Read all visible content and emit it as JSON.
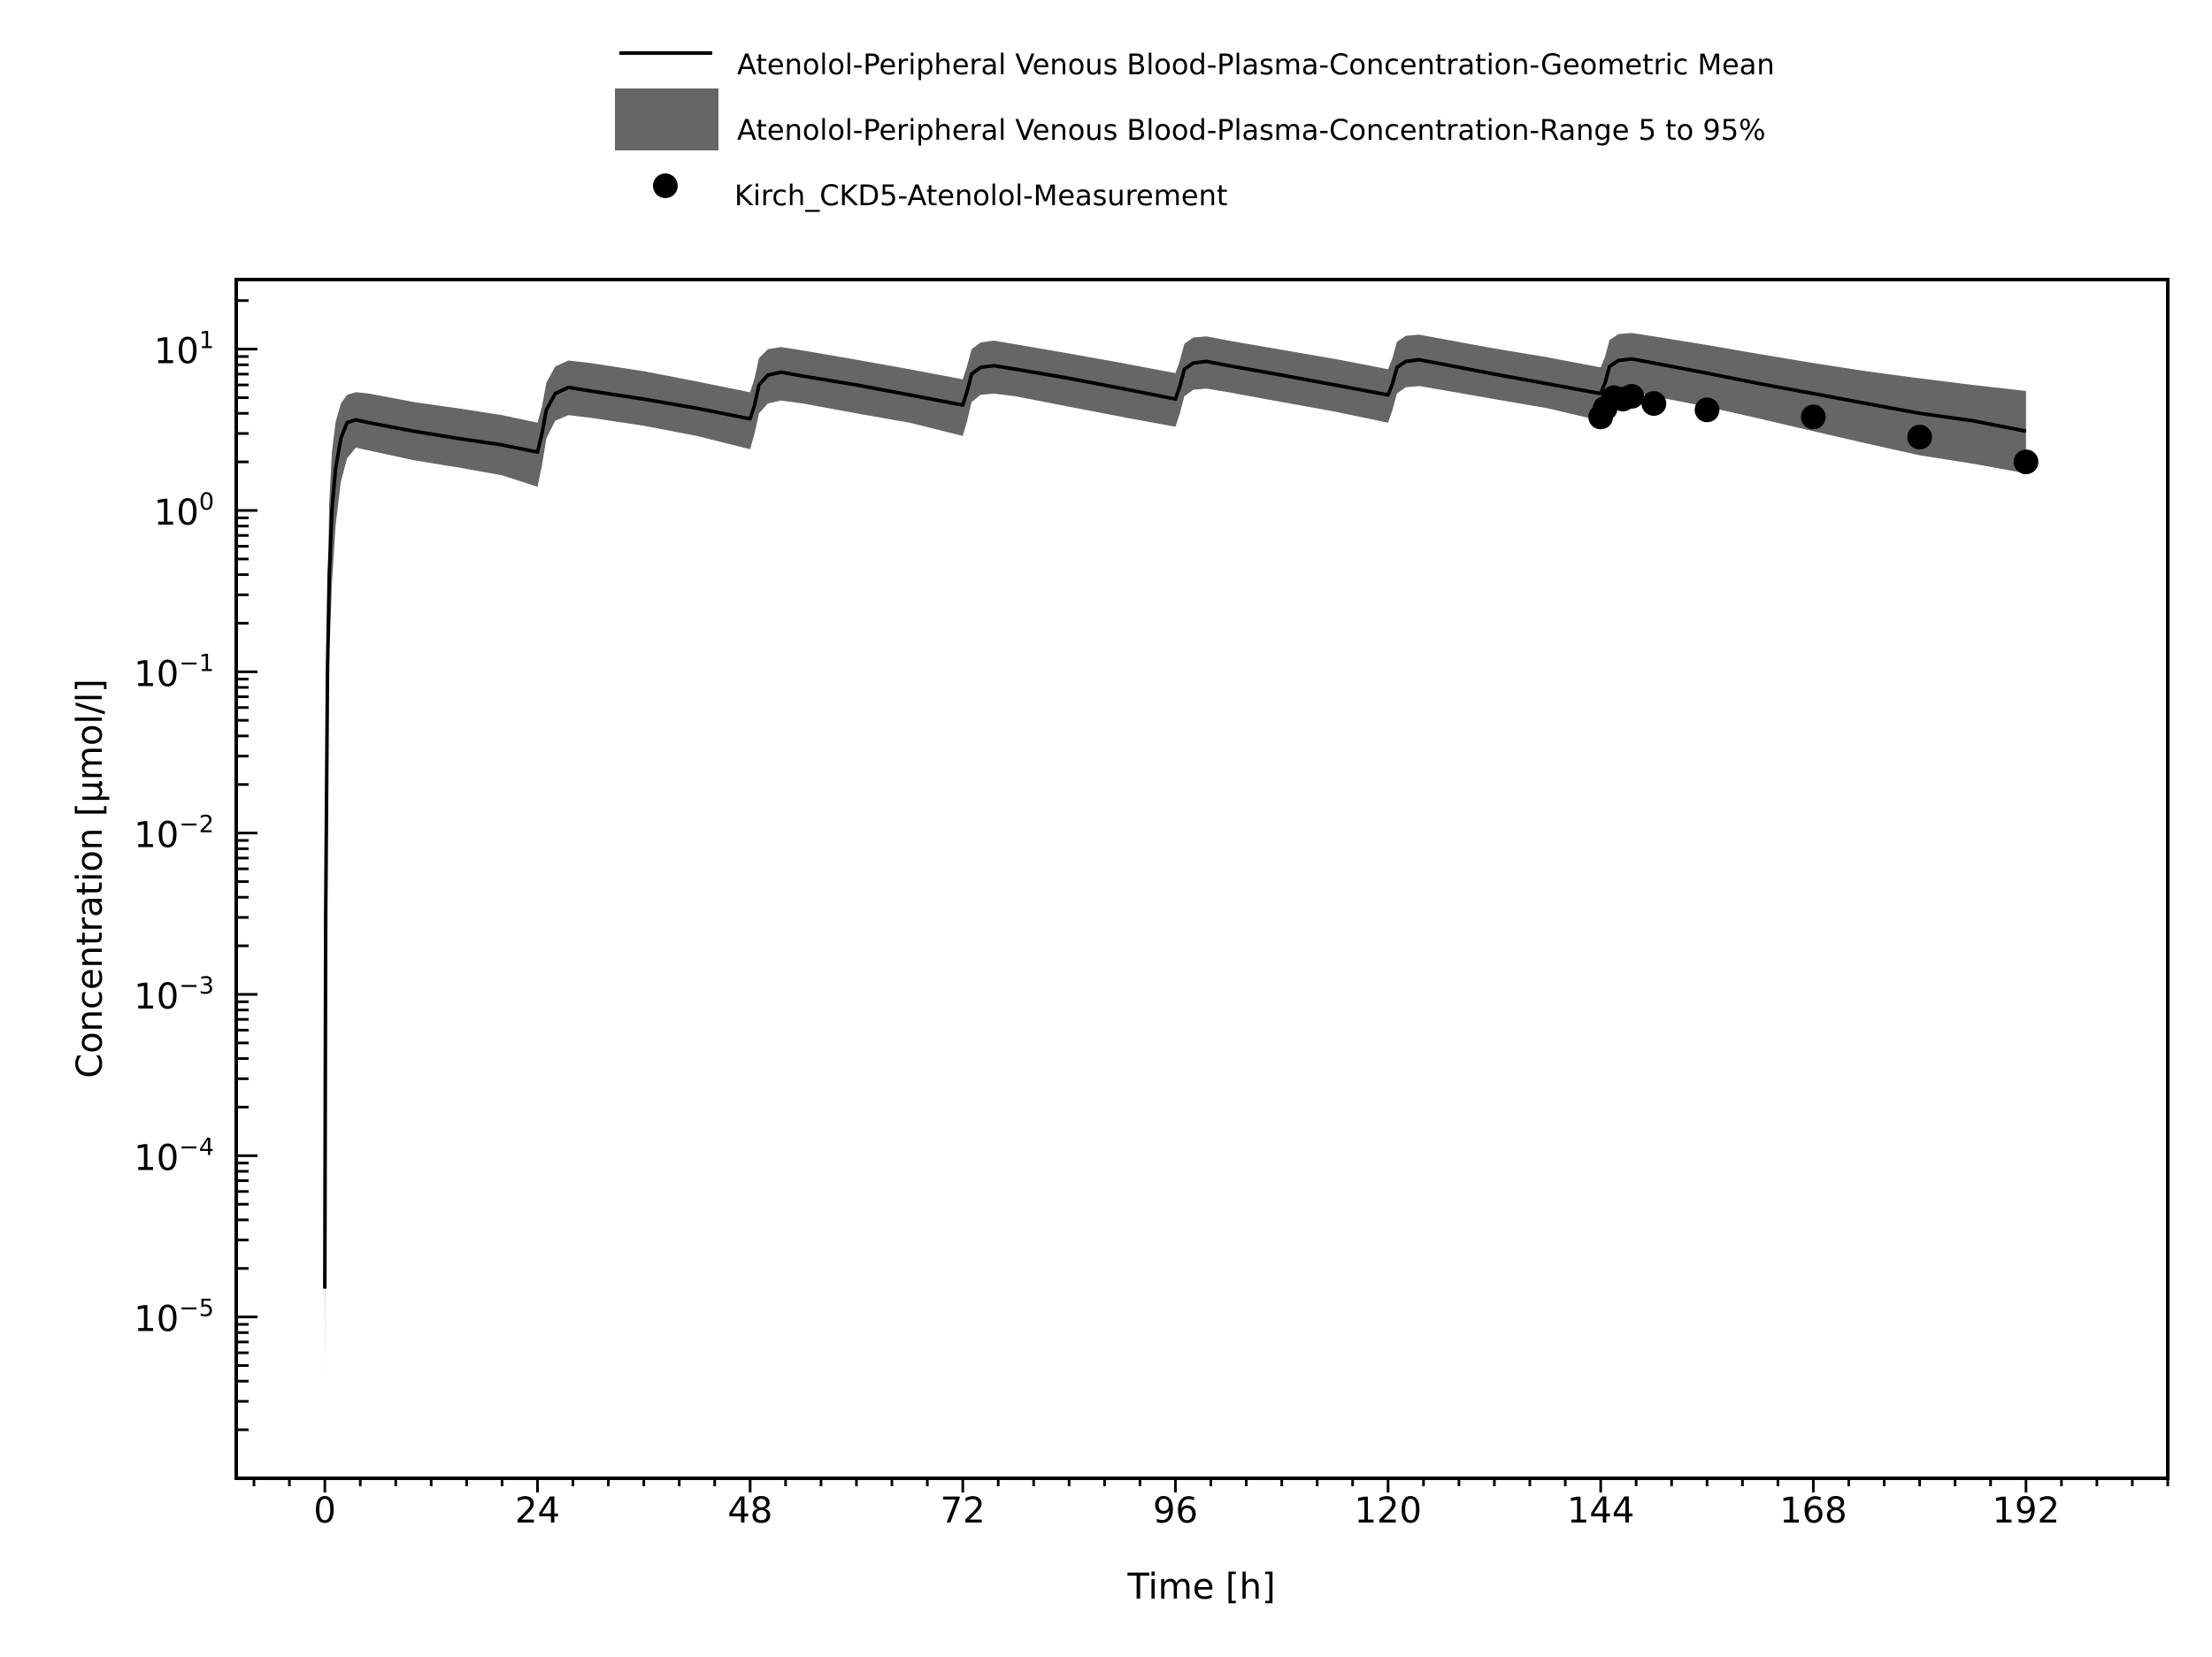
{
  "chart_data": {
    "type": "line",
    "title": "",
    "xlabel": "Time [h]",
    "ylabel": "Concentration [µmol/l]",
    "xlim": [
      -10,
      208
    ],
    "xticks": [
      0,
      24,
      48,
      72,
      96,
      120,
      144,
      168,
      192
    ],
    "ylog": true,
    "ylim": [
      1e-06,
      27
    ],
    "yticks": [
      {
        "base": "10",
        "exp": "−5",
        "value": 1e-05
      },
      {
        "base": "10",
        "exp": "−4",
        "value": 0.0001
      },
      {
        "base": "10",
        "exp": "−3",
        "value": 0.001
      },
      {
        "base": "10",
        "exp": "−2",
        "value": 0.01
      },
      {
        "base": "10",
        "exp": "−1",
        "value": 0.1
      },
      {
        "base": "10",
        "exp": "0",
        "value": 1
      },
      {
        "base": "10",
        "exp": "1",
        "value": 10
      }
    ],
    "grid": false,
    "legend_position": "top-center",
    "series": [
      {
        "name": "Atenolol-Peripheral Venous Blood-Plasma-Concentration-Geometric Mean",
        "kind": "line",
        "color": "#000000",
        "points": [
          [
            0,
            1.5e-05
          ],
          [
            0.1,
            0.003
          ],
          [
            0.3,
            0.1
          ],
          [
            0.5,
            0.4
          ],
          [
            0.8,
            1.0
          ],
          [
            1.2,
            1.8
          ],
          [
            1.8,
            2.8
          ],
          [
            2.5,
            3.5
          ],
          [
            3.5,
            3.65
          ],
          [
            5,
            3.5
          ],
          [
            10,
            3.1
          ],
          [
            15,
            2.8
          ],
          [
            20,
            2.55
          ],
          [
            24,
            2.3
          ],
          [
            24.5,
            3.0
          ],
          [
            25,
            4.2
          ],
          [
            26,
            5.3
          ],
          [
            27.5,
            5.8
          ],
          [
            30,
            5.5
          ],
          [
            36,
            4.9
          ],
          [
            42,
            4.3
          ],
          [
            48,
            3.7
          ],
          [
            48.5,
            4.5
          ],
          [
            49,
            6.0
          ],
          [
            50,
            6.9
          ],
          [
            51.5,
            7.2
          ],
          [
            54,
            6.8
          ],
          [
            60,
            6.0
          ],
          [
            66,
            5.2
          ],
          [
            72,
            4.5
          ],
          [
            72.5,
            5.5
          ],
          [
            73,
            7.0
          ],
          [
            74,
            7.7
          ],
          [
            75.5,
            7.9
          ],
          [
            78,
            7.5
          ],
          [
            84,
            6.6
          ],
          [
            90,
            5.7
          ],
          [
            96,
            4.9
          ],
          [
            96.5,
            5.9
          ],
          [
            97,
            7.5
          ],
          [
            98,
            8.2
          ],
          [
            99.5,
            8.4
          ],
          [
            102,
            7.9
          ],
          [
            108,
            6.9
          ],
          [
            114,
            6.0
          ],
          [
            120,
            5.2
          ],
          [
            120.5,
            6.1
          ],
          [
            121,
            7.7
          ],
          [
            122,
            8.4
          ],
          [
            123.5,
            8.6
          ],
          [
            126,
            8.1
          ],
          [
            132,
            7.0
          ],
          [
            138,
            6.1
          ],
          [
            144,
            5.3
          ],
          [
            144.5,
            6.2
          ],
          [
            145,
            7.8
          ],
          [
            146,
            8.5
          ],
          [
            147.5,
            8.7
          ],
          [
            150,
            8.2
          ],
          [
            156,
            7.1
          ],
          [
            162,
            6.1
          ],
          [
            168,
            5.3
          ],
          [
            174,
            4.6
          ],
          [
            180,
            4.0
          ],
          [
            186,
            3.6
          ],
          [
            192,
            3.1
          ]
        ]
      },
      {
        "name": "Atenolol-Peripheral Venous Blood-Plasma-Concentration-Range 5 to 95%",
        "kind": "band",
        "color": "#666666",
        "upper": [
          [
            0,
            1.5e-05
          ],
          [
            0.1,
            0.006
          ],
          [
            0.3,
            0.25
          ],
          [
            0.5,
            1.1
          ],
          [
            0.8,
            2.3
          ],
          [
            1.2,
            3.5
          ],
          [
            1.8,
            4.6
          ],
          [
            2.5,
            5.2
          ],
          [
            3.5,
            5.4
          ],
          [
            5,
            5.3
          ],
          [
            10,
            4.7
          ],
          [
            15,
            4.3
          ],
          [
            20,
            3.9
          ],
          [
            24,
            3.5
          ],
          [
            24.5,
            4.4
          ],
          [
            25,
            6.2
          ],
          [
            26,
            7.8
          ],
          [
            27.5,
            8.5
          ],
          [
            30,
            8.2
          ],
          [
            36,
            7.3
          ],
          [
            42,
            6.3
          ],
          [
            48,
            5.4
          ],
          [
            48.5,
            6.6
          ],
          [
            49,
            8.8
          ],
          [
            50,
            10.0
          ],
          [
            51.5,
            10.3
          ],
          [
            54,
            9.8
          ],
          [
            60,
            8.6
          ],
          [
            66,
            7.5
          ],
          [
            72,
            6.5
          ],
          [
            72.5,
            7.9
          ],
          [
            73,
            10.0
          ],
          [
            74,
            11.0
          ],
          [
            75.5,
            11.3
          ],
          [
            78,
            10.7
          ],
          [
            84,
            9.4
          ],
          [
            90,
            8.2
          ],
          [
            96,
            7.1
          ],
          [
            96.5,
            8.5
          ],
          [
            97,
            10.8
          ],
          [
            98,
            11.8
          ],
          [
            99.5,
            12.0
          ],
          [
            102,
            11.3
          ],
          [
            108,
            9.9
          ],
          [
            114,
            8.7
          ],
          [
            120,
            7.5
          ],
          [
            120.5,
            8.8
          ],
          [
            121,
            11.1
          ],
          [
            122,
            12.1
          ],
          [
            123.5,
            12.3
          ],
          [
            126,
            11.6
          ],
          [
            132,
            10.1
          ],
          [
            138,
            8.9
          ],
          [
            144,
            7.7
          ],
          [
            144.5,
            9.0
          ],
          [
            145,
            11.4
          ],
          [
            146,
            12.4
          ],
          [
            147.5,
            12.6
          ],
          [
            150,
            12.0
          ],
          [
            156,
            10.6
          ],
          [
            162,
            9.3
          ],
          [
            168,
            8.2
          ],
          [
            174,
            7.3
          ],
          [
            180,
            6.6
          ],
          [
            186,
            6.0
          ],
          [
            192,
            5.5
          ]
        ],
        "lower": [
          [
            0,
            4e-06
          ],
          [
            0.1,
            0.0008
          ],
          [
            0.3,
            0.03
          ],
          [
            0.5,
            0.12
          ],
          [
            0.8,
            0.35
          ],
          [
            1.2,
            0.8
          ],
          [
            1.8,
            1.5
          ],
          [
            2.5,
            2.1
          ],
          [
            3.5,
            2.45
          ],
          [
            5,
            2.35
          ],
          [
            10,
            2.05
          ],
          [
            15,
            1.85
          ],
          [
            20,
            1.65
          ],
          [
            24,
            1.4
          ],
          [
            24.5,
            1.9
          ],
          [
            25,
            2.8
          ],
          [
            26,
            3.6
          ],
          [
            27.5,
            3.9
          ],
          [
            30,
            3.75
          ],
          [
            36,
            3.35
          ],
          [
            42,
            2.9
          ],
          [
            48,
            2.4
          ],
          [
            48.5,
            3.0
          ],
          [
            49,
            4.0
          ],
          [
            50,
            4.6
          ],
          [
            51.5,
            4.8
          ],
          [
            54,
            4.6
          ],
          [
            60,
            4.0
          ],
          [
            66,
            3.5
          ],
          [
            72,
            2.9
          ],
          [
            72.5,
            3.6
          ],
          [
            73,
            4.7
          ],
          [
            74,
            5.2
          ],
          [
            75.5,
            5.3
          ],
          [
            78,
            5.1
          ],
          [
            84,
            4.4
          ],
          [
            90,
            3.8
          ],
          [
            96,
            3.3
          ],
          [
            96.5,
            4.0
          ],
          [
            97,
            5.1
          ],
          [
            98,
            5.6
          ],
          [
            99.5,
            5.7
          ],
          [
            102,
            5.4
          ],
          [
            108,
            4.7
          ],
          [
            114,
            4.1
          ],
          [
            120,
            3.5
          ],
          [
            120.5,
            4.2
          ],
          [
            121,
            5.3
          ],
          [
            122,
            5.8
          ],
          [
            123.5,
            5.9
          ],
          [
            126,
            5.6
          ],
          [
            132,
            4.9
          ],
          [
            138,
            4.3
          ],
          [
            144,
            3.6
          ],
          [
            144.5,
            4.2
          ],
          [
            145,
            5.0
          ],
          [
            146,
            5.3
          ],
          [
            147.5,
            5.4
          ],
          [
            150,
            5.1
          ],
          [
            156,
            4.4
          ],
          [
            162,
            3.7
          ],
          [
            168,
            3.1
          ],
          [
            174,
            2.6
          ],
          [
            180,
            2.2
          ],
          [
            186,
            1.95
          ],
          [
            192,
            1.7
          ]
        ]
      },
      {
        "name": "Kirch_CKD5-Atenolol-Measurement",
        "kind": "scatter",
        "color": "#000000",
        "points": [
          [
            144,
            3.8
          ],
          [
            144.5,
            4.3
          ],
          [
            145.5,
            5.0
          ],
          [
            146.5,
            4.9
          ],
          [
            147.5,
            5.1
          ],
          [
            150,
            4.6
          ],
          [
            156,
            4.2
          ],
          [
            168,
            3.8
          ],
          [
            180,
            2.85
          ],
          [
            192,
            2.0
          ]
        ]
      }
    ]
  }
}
